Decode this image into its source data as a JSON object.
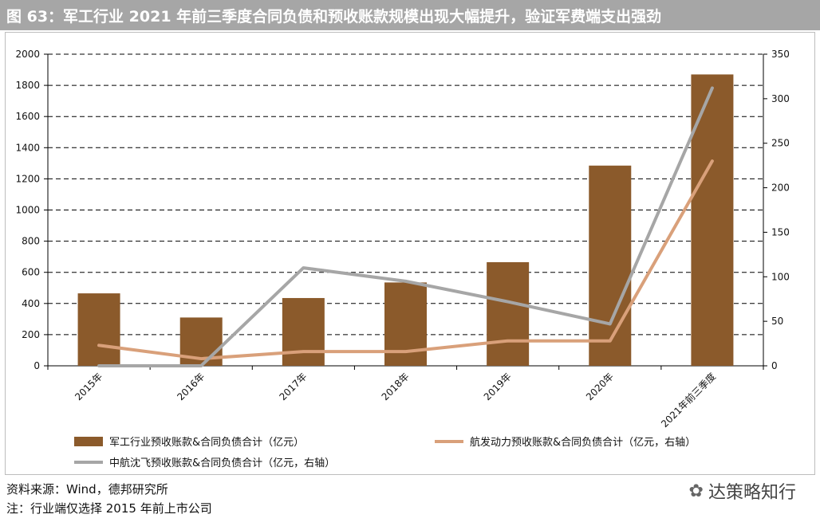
{
  "title": "图 63：军工行业 2021 年前三季度合同负债和预收账款规模出现大幅提升，验证军费端支出强劲",
  "source_note": "资料来源：Wind，德邦研究所",
  "footnote": "注：行业端仅选择 2015 年前上市公司",
  "watermark": "达策略知行",
  "chart_data": {
    "type": "bar",
    "categories": [
      "2015年",
      "2016年",
      "2017年",
      "2018年",
      "2019年",
      "2020年",
      "2021年前三季度"
    ],
    "y_left": {
      "ylim": [
        0,
        2000
      ],
      "ticks": [
        0,
        200,
        400,
        600,
        800,
        1000,
        1200,
        1400,
        1600,
        1800,
        2000
      ]
    },
    "y_right": {
      "ylim": [
        0,
        350
      ],
      "ticks": [
        0,
        50,
        100,
        150,
        200,
        250,
        300,
        350
      ]
    },
    "grid": "horizontal dashed",
    "legend_position": "bottom",
    "series": [
      {
        "name": "军工行业预收账款&合同负债合计（亿元）",
        "type": "bar",
        "axis": "left",
        "color": "#8b5a2b",
        "values": [
          465,
          310,
          435,
          535,
          665,
          1285,
          1870
        ]
      },
      {
        "name": "航发动力预收账款&合同负债合计（亿元，右轴）",
        "type": "line",
        "axis": "right",
        "color": "#d9a07a",
        "values": [
          23,
          8,
          16,
          16,
          28,
          28,
          230
        ]
      },
      {
        "name": "中航沈飞预收账款&合同负债合计（亿元，右轴）",
        "type": "line",
        "axis": "right",
        "color": "#a6a6a6",
        "values": [
          0,
          0,
          110,
          95,
          72,
          47,
          312
        ]
      }
    ]
  }
}
